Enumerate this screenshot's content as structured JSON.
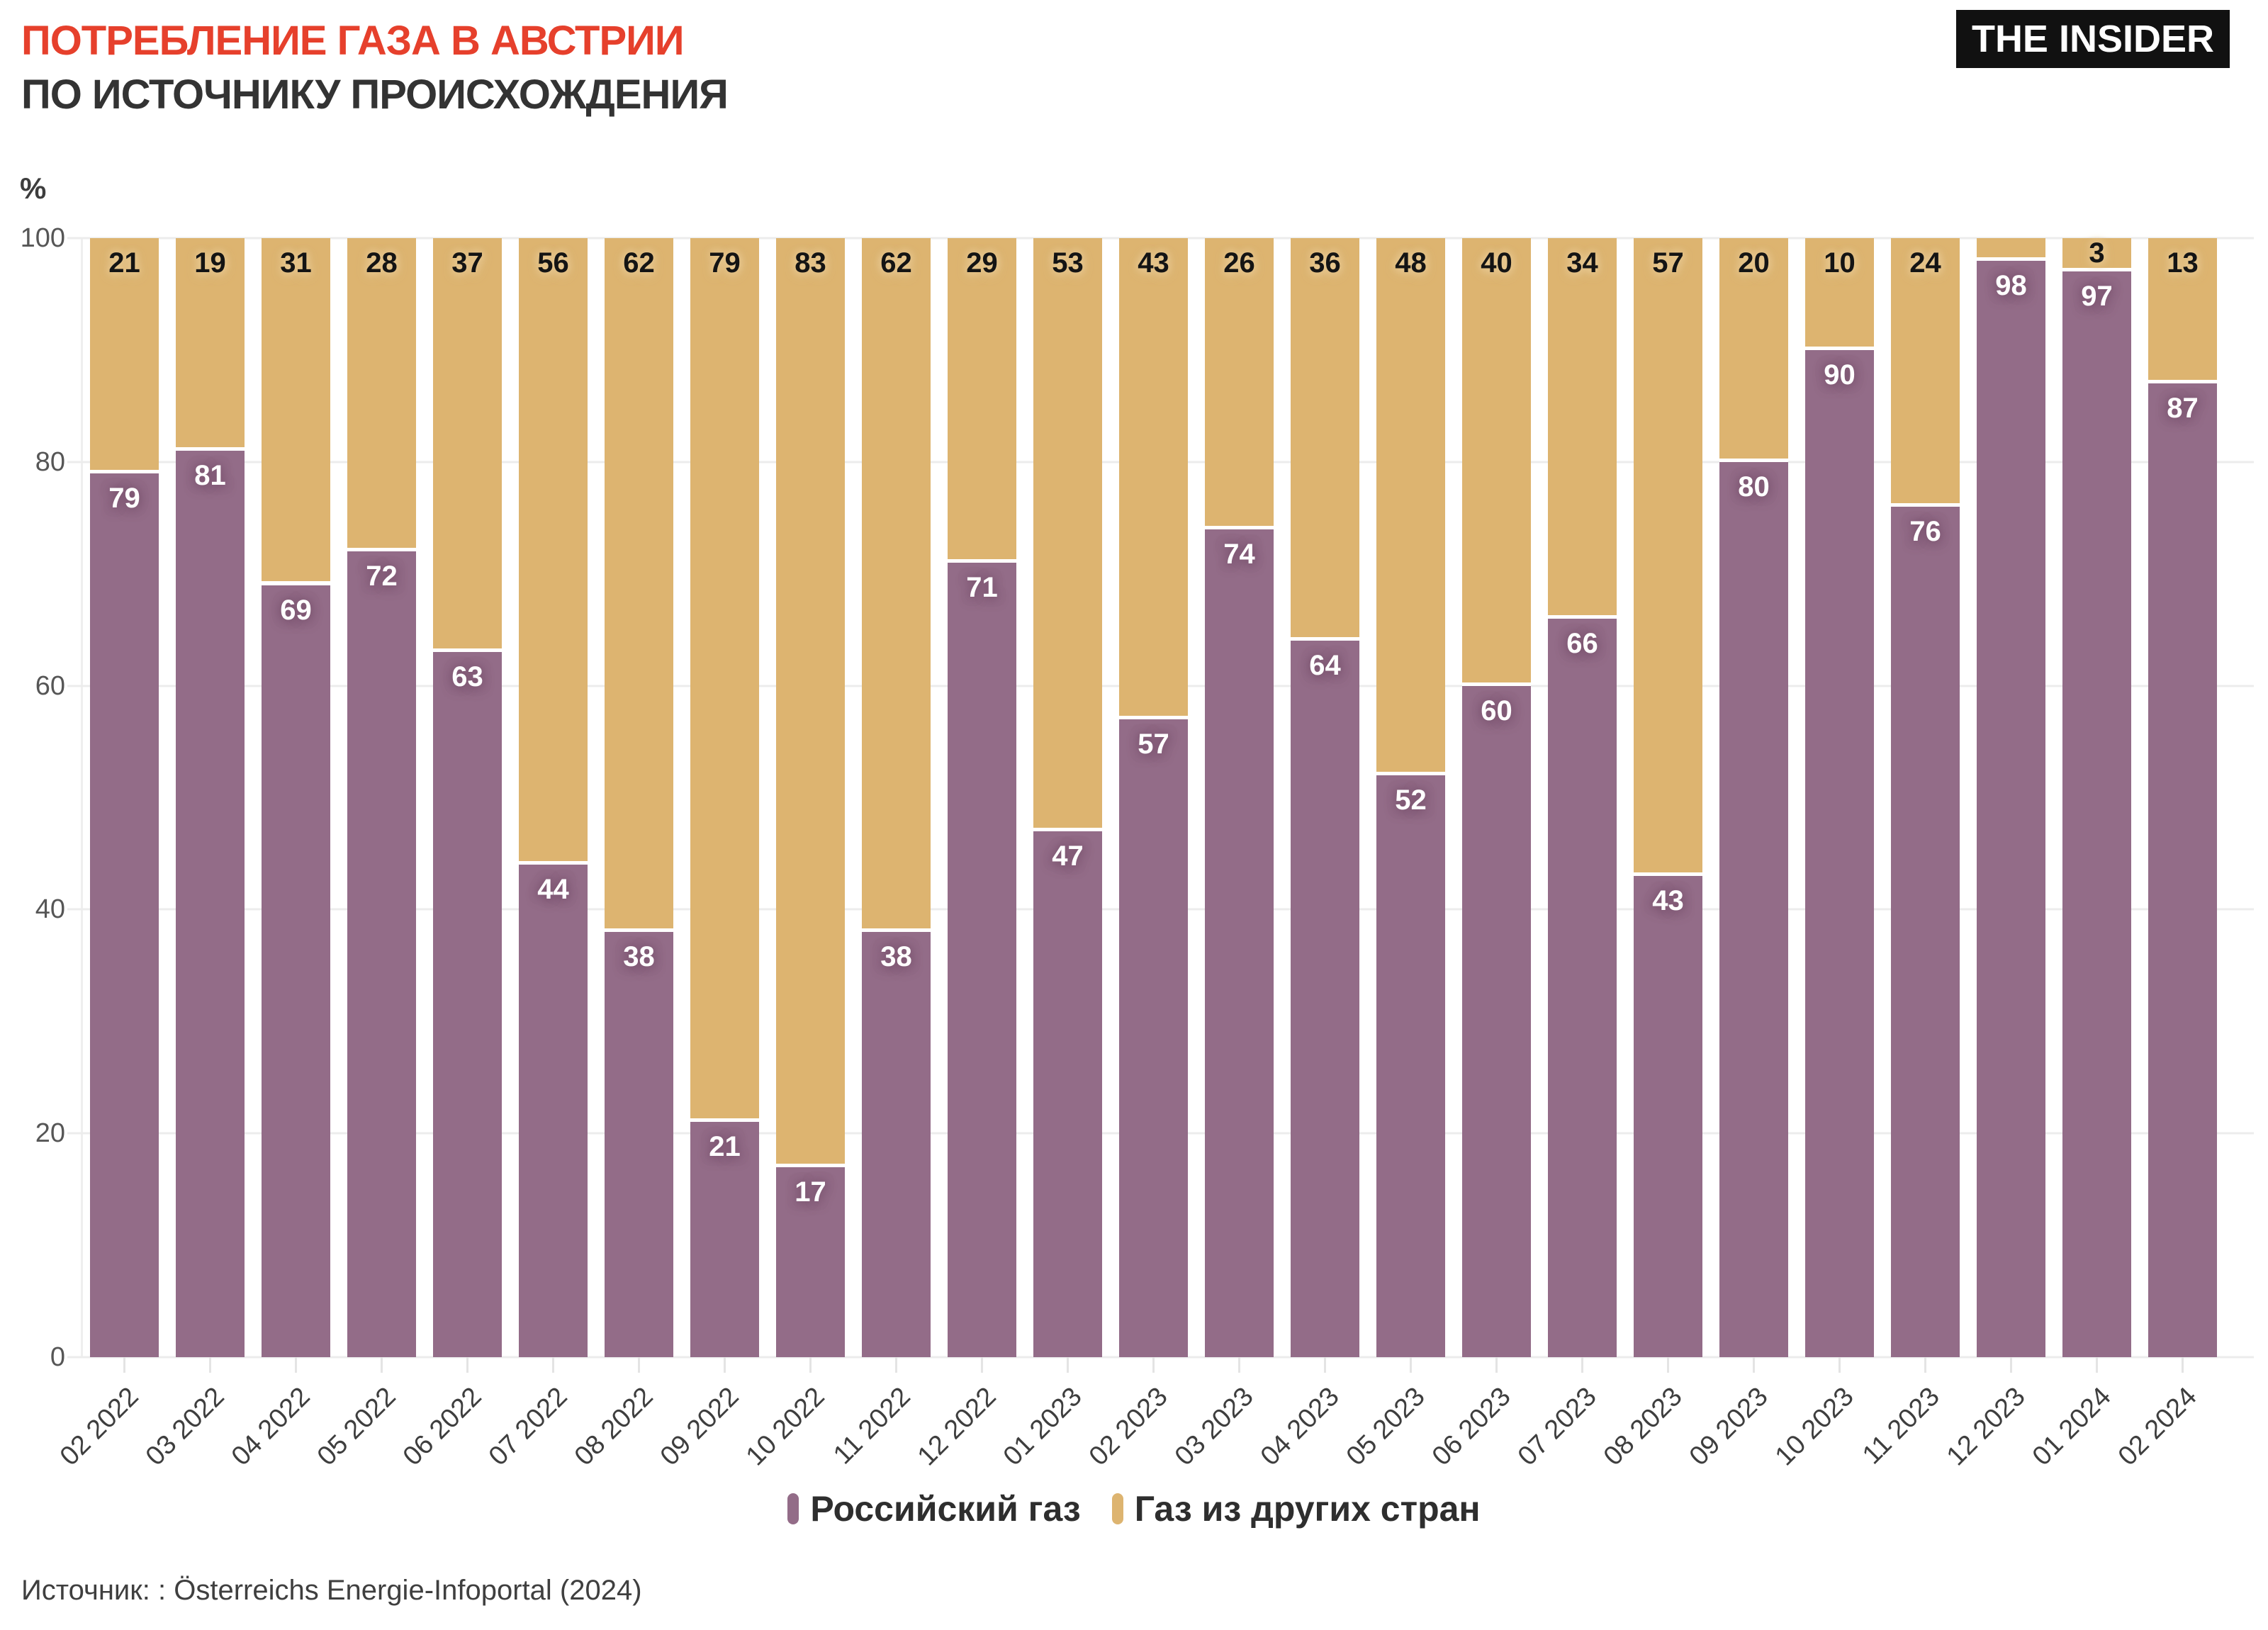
{
  "header": {
    "title": "ПОТРЕБЛЕНИЕ ГАЗА В АВСТРИИ",
    "subtitle": "ПО ИСТОЧНИКУ ПРОИСХОЖДЕНИЯ"
  },
  "logo": {
    "text": "THE INSIDER"
  },
  "source": {
    "text": "Источник: : Österreichs Energie-Infoportal (2024)"
  },
  "colors": {
    "title": "#E6402C",
    "subtitle": "#333333",
    "background": "#FFFFFF",
    "grid": "#ECECEC",
    "axis_text": "#565656",
    "logo_bg": "#111111",
    "logo_text": "#FFFFFF",
    "russian_gas": "#936C88",
    "other_gas": "#DDB470"
  },
  "chart_data": {
    "type": "bar",
    "stacked": true,
    "title": "ПОТРЕБЛЕНИЕ ГАЗА В АВСТРИИ ПО ИСТОЧНИКУ ПРОИСХОЖДЕНИЯ",
    "xlabel": "",
    "ylabel": "%",
    "ylim": [
      0,
      100
    ],
    "yticks": [
      0,
      20,
      40,
      60,
      80,
      100
    ],
    "grid": true,
    "legend_position": "bottom",
    "categories": [
      "02 2022",
      "03 2022",
      "04 2022",
      "05 2022",
      "06 2022",
      "07 2022",
      "08 2022",
      "09 2022",
      "10 2022",
      "11 2022",
      "12 2022",
      "01 2023",
      "02 2023",
      "03 2023",
      "04 2023",
      "05 2023",
      "06 2023",
      "07 2023",
      "08 2023",
      "09 2023",
      "10 2023",
      "11 2023",
      "12 2023",
      "01 2024",
      "02 2024"
    ],
    "series": [
      {
        "name": "Российский газ",
        "color": "#936C88",
        "values": [
          79,
          81,
          69,
          72,
          63,
          44,
          38,
          21,
          17,
          38,
          71,
          47,
          57,
          74,
          64,
          52,
          60,
          66,
          43,
          80,
          90,
          76,
          98,
          97,
          87
        ],
        "labels": [
          "79",
          "81",
          "69",
          "72",
          "63",
          "44",
          "38",
          "21",
          "17",
          "38",
          "71",
          "47",
          "57",
          "74",
          "64",
          "52",
          "60",
          "66",
          "43",
          "80",
          "90",
          "76",
          "98",
          "97",
          "87"
        ]
      },
      {
        "name": "Газ из других стран",
        "color": "#DDB470",
        "values": [
          21,
          19,
          31,
          28,
          37,
          56,
          62,
          79,
          83,
          62,
          29,
          53,
          43,
          26,
          36,
          48,
          40,
          34,
          57,
          20,
          10,
          24,
          2,
          3,
          13
        ],
        "labels": [
          "21",
          "19",
          "31",
          "28",
          "37",
          "56",
          "62",
          "79",
          "83",
          "62",
          "29",
          "53",
          "43",
          "26",
          "36",
          "48",
          "40",
          "34",
          "57",
          "20",
          "10",
          "24",
          "",
          "3",
          "13"
        ]
      }
    ]
  }
}
